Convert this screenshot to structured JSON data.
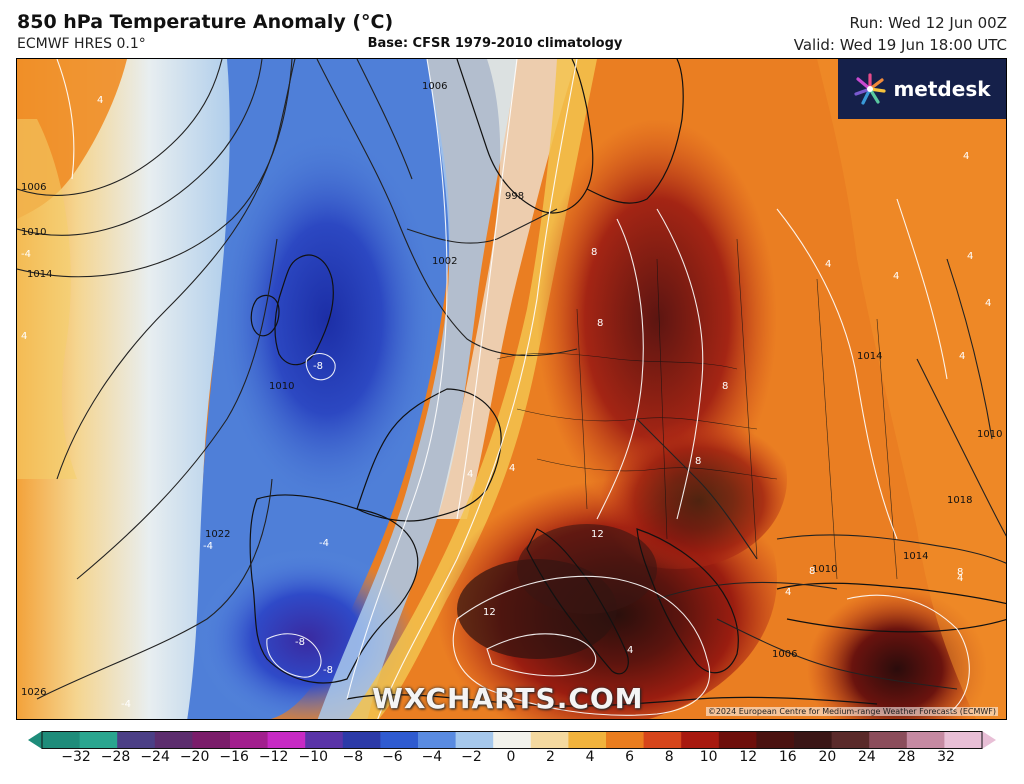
{
  "header": {
    "title": "850 hPa Temperature Anomaly (°C)",
    "model": "ECMWF HRES 0.1°",
    "base": "Base: CFSR 1979-2010 climatology",
    "run": "Run: Wed 12 Jun 00Z",
    "valid": "Valid: Wed 19 Jun 18:00 UTC"
  },
  "branding": {
    "logo_text": "metdesk",
    "logo_icon": "starburst-icon",
    "watermark": "WXCHARTS.COM",
    "copyright": "©2024 European Centre for Medium-range Weather Forecasts (ECMWF)"
  },
  "map": {
    "region": "Europe and North Atlantic",
    "isobar_labels": [
      "1006",
      "1010",
      "1014",
      "1002",
      "998",
      "1010",
      "1006",
      "1014",
      "1018",
      "1010",
      "1014",
      "1006",
      "1022",
      "1026",
      "1010"
    ],
    "anomaly_labels": [
      "4",
      "4",
      "-4",
      "-8",
      "-4",
      "8",
      "8",
      "8",
      "4",
      "4",
      "4",
      "4",
      "8",
      "12",
      "12",
      "8",
      "4",
      "4",
      "-8",
      "-8",
      "-4",
      "4",
      "4",
      "4",
      "4",
      "4",
      "8",
      "-4"
    ]
  },
  "colorbar": {
    "ticks": [
      "−32",
      "−28",
      "−24",
      "−20",
      "−16",
      "−12",
      "−10",
      "−8",
      "−6",
      "−4",
      "−2",
      "0",
      "2",
      "4",
      "6",
      "8",
      "10",
      "12",
      "16",
      "20",
      "24",
      "28",
      "32"
    ],
    "colors": [
      "#1e8c7a",
      "#2aa58f",
      "#4b3f86",
      "#5c2d6e",
      "#7a1d6a",
      "#a21f8e",
      "#c72ac4",
      "#5a34a8",
      "#2c3aa8",
      "#2f5bd0",
      "#5a8be0",
      "#a6c8ec",
      "#f2f2ec",
      "#f4d9a0",
      "#f1b33d",
      "#ea7d1f",
      "#d6451b",
      "#a8190f",
      "#6e0f0b",
      "#4a1210",
      "#3a1616",
      "#5a2a2a",
      "#8b4d5b",
      "#c58aa2",
      "#e8bfd6"
    ]
  }
}
